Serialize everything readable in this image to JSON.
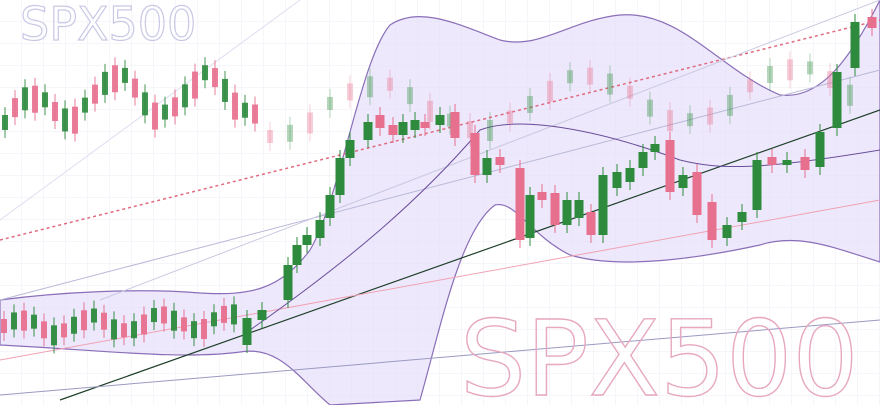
{
  "watermark_small": "SPX500",
  "watermark_large": "SPX500"
}
